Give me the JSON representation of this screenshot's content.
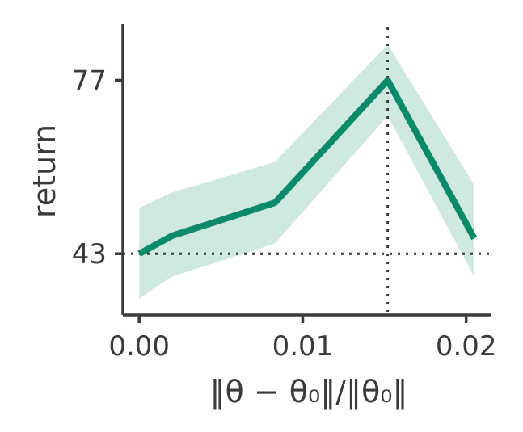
{
  "chart_data": {
    "type": "line",
    "xlabel": "‖θ − θ₀‖/‖θ₀‖",
    "ylabel": "return",
    "xlim": [
      -0.001,
      0.0215
    ],
    "ylim": [
      31,
      88
    ],
    "x_ticks": [
      0.0,
      0.01,
      0.02
    ],
    "x_tick_labels": [
      "0.00",
      "0.01",
      "0.02"
    ],
    "y_ticks": [
      43,
      77
    ],
    "y_tick_labels": [
      "43",
      "77"
    ],
    "grid": false,
    "series": [
      {
        "color": "#0b8a6a",
        "band_color": "#cfe8e0",
        "x": [
          0.0,
          0.002,
          0.0083,
          0.0152,
          0.0205
        ],
        "y": [
          43,
          46.5,
          53,
          77,
          46
        ],
        "y_lower": [
          34.2,
          38.5,
          45,
          70,
          38.5
        ],
        "y_upper": [
          52,
          55,
          61,
          84,
          56.5
        ]
      }
    ],
    "reference_lines": {
      "horizontal_y": 43,
      "vertical_x": 0.0152
    }
  }
}
